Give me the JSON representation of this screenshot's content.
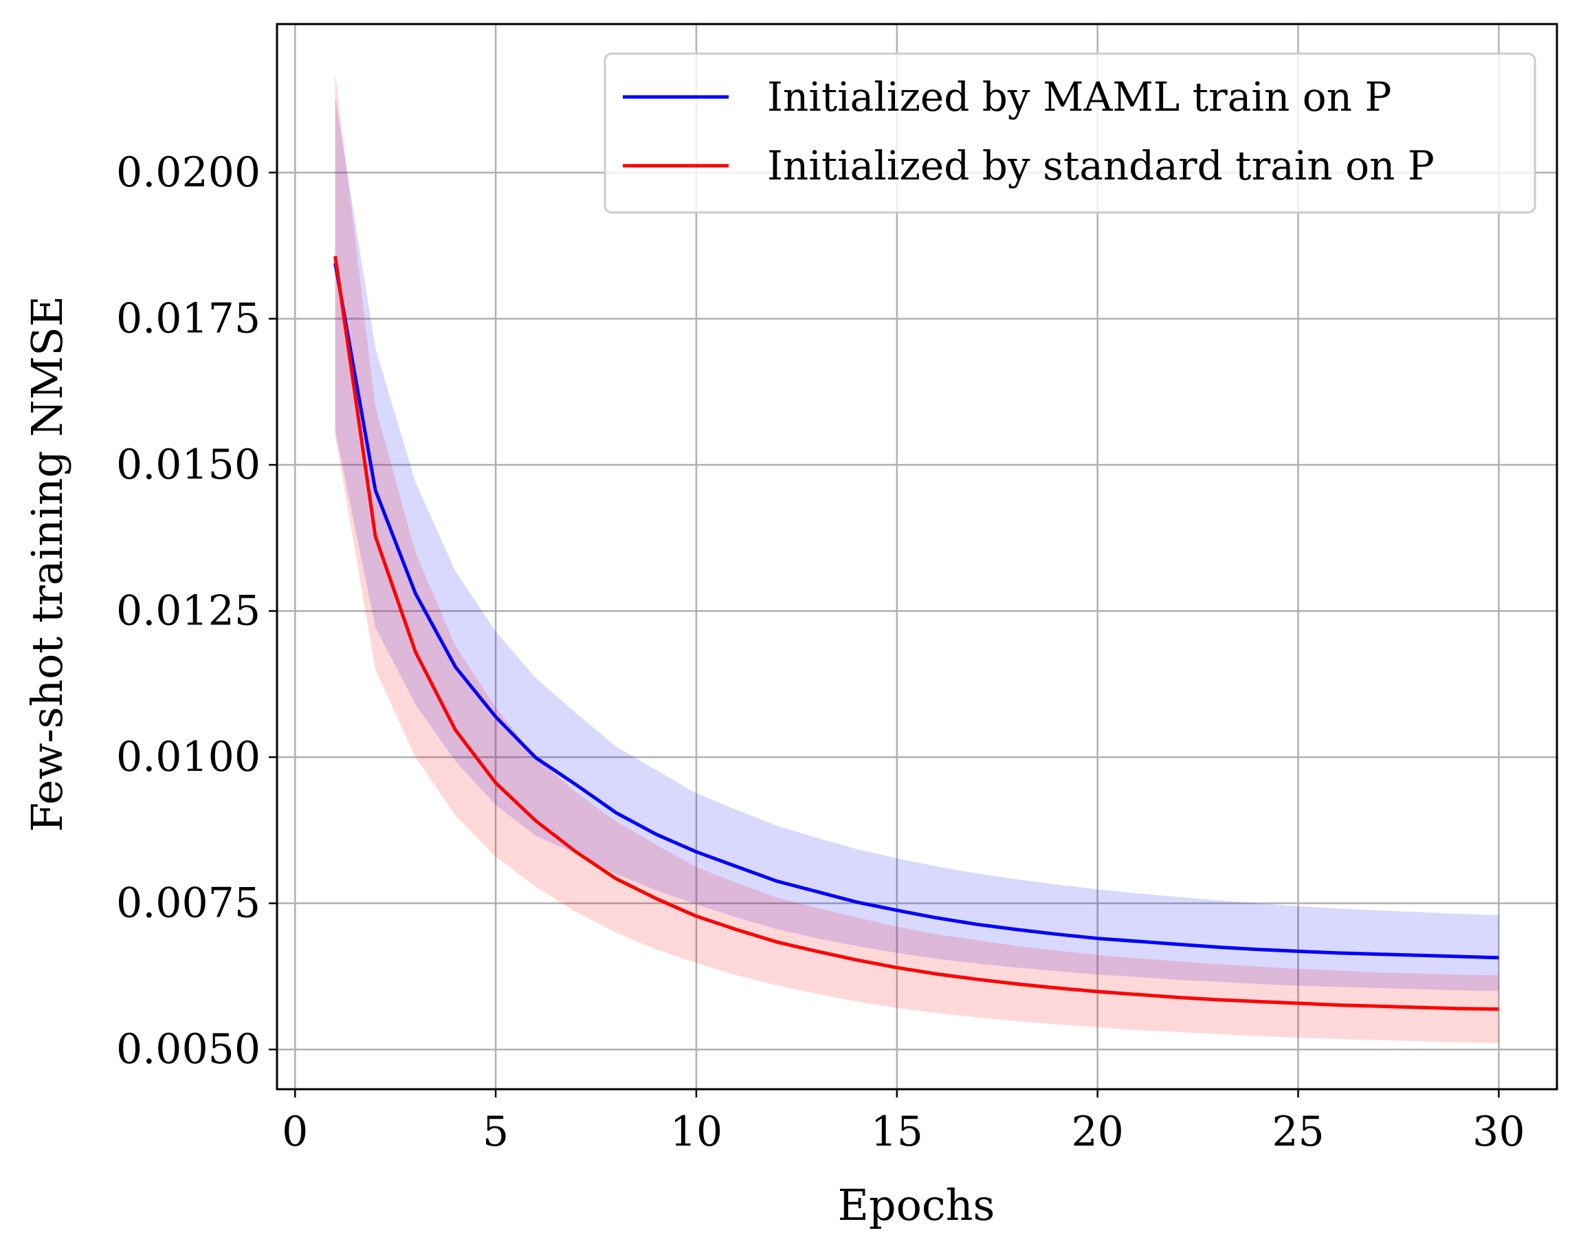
{
  "chart_data": {
    "type": "line",
    "title": "",
    "xlabel": "Epochs",
    "ylabel": "Few-shot training NMSE",
    "xlim": [
      -0.45,
      31.45
    ],
    "ylim": [
      0.00432,
      0.02254
    ],
    "xticks": [
      0,
      5,
      10,
      15,
      20,
      25,
      30
    ],
    "xtick_labels": [
      "0",
      "5",
      "10",
      "15",
      "20",
      "25",
      "30"
    ],
    "yticks": [
      0.005,
      0.0075,
      0.01,
      0.0125,
      0.015,
      0.0175,
      0.02
    ],
    "ytick_labels": [
      "0.0050",
      "0.0075",
      "0.0100",
      "0.0125",
      "0.0150",
      "0.0175",
      "0.0200"
    ],
    "grid": true,
    "legend_position": "top-right",
    "x": [
      1,
      2,
      3,
      4,
      5,
      6,
      7,
      8,
      9,
      10,
      11,
      12,
      13,
      14,
      15,
      16,
      17,
      18,
      19,
      20,
      21,
      22,
      23,
      24,
      25,
      26,
      27,
      28,
      29,
      30
    ],
    "series": [
      {
        "name": "Initialized by MAML train on P",
        "color": "#0000ff",
        "band_color": "#0000ff",
        "values": [
          0.01845,
          0.01457,
          0.0128,
          0.01154,
          0.01069,
          0.00999,
          0.00953,
          0.00905,
          0.00868,
          0.00838,
          0.00813,
          0.00788,
          0.0077,
          0.00752,
          0.00738,
          0.00725,
          0.00714,
          0.00705,
          0.00697,
          0.0069,
          0.00685,
          0.0068,
          0.00675,
          0.00671,
          0.00668,
          0.00665,
          0.00663,
          0.00661,
          0.00659,
          0.00657
        ],
        "lower": [
          0.0156,
          0.01222,
          0.0109,
          0.00993,
          0.00918,
          0.00865,
          0.00835,
          0.008,
          0.00772,
          0.00748,
          0.00726,
          0.00706,
          0.0069,
          0.00677,
          0.00665,
          0.00655,
          0.00647,
          0.0064,
          0.00634,
          0.00628,
          0.00624,
          0.00619,
          0.00616,
          0.00612,
          0.00609,
          0.00607,
          0.00605,
          0.00603,
          0.00601,
          0.006
        ],
        "upper": [
          0.0213,
          0.017,
          0.0147,
          0.01318,
          0.01215,
          0.01135,
          0.01075,
          0.01018,
          0.00978,
          0.00938,
          0.0091,
          0.00883,
          0.00862,
          0.00843,
          0.00827,
          0.00813,
          0.00801,
          0.00791,
          0.00782,
          0.00774,
          0.00767,
          0.00761,
          0.00755,
          0.0075,
          0.00745,
          0.00741,
          0.00738,
          0.00735,
          0.00732,
          0.0073
        ]
      },
      {
        "name": "Initialized by standard train on P",
        "color": "#ff0000",
        "band_color": "#ff0000",
        "values": [
          0.01857,
          0.01378,
          0.0118,
          0.01046,
          0.00956,
          0.00891,
          0.00838,
          0.00792,
          0.00758,
          0.00728,
          0.00705,
          0.00684,
          0.00668,
          0.00653,
          0.0064,
          0.00629,
          0.0062,
          0.00612,
          0.00605,
          0.00599,
          0.00594,
          0.00589,
          0.00585,
          0.00582,
          0.00579,
          0.00576,
          0.00574,
          0.00572,
          0.0057,
          0.00569
        ],
        "lower": [
          0.0155,
          0.0115,
          0.01,
          0.009,
          0.0083,
          0.00778,
          0.00735,
          0.007,
          0.00671,
          0.00648,
          0.00627,
          0.0061,
          0.00595,
          0.00582,
          0.00571,
          0.00562,
          0.00555,
          0.00548,
          0.00543,
          0.00538,
          0.00533,
          0.0053,
          0.00526,
          0.00523,
          0.0052,
          0.00518,
          0.00516,
          0.00514,
          0.00512,
          0.00511
        ],
        "upper": [
          0.0217,
          0.016,
          0.0135,
          0.0119,
          0.01085,
          0.01,
          0.0094,
          0.0089,
          0.0085,
          0.00812,
          0.00785,
          0.0076,
          0.00742,
          0.00726,
          0.0071,
          0.00697,
          0.00687,
          0.00677,
          0.00669,
          0.00662,
          0.00656,
          0.00651,
          0.00646,
          0.00642,
          0.00638,
          0.00635,
          0.00632,
          0.0063,
          0.00628,
          0.00627
        ]
      }
    ]
  }
}
